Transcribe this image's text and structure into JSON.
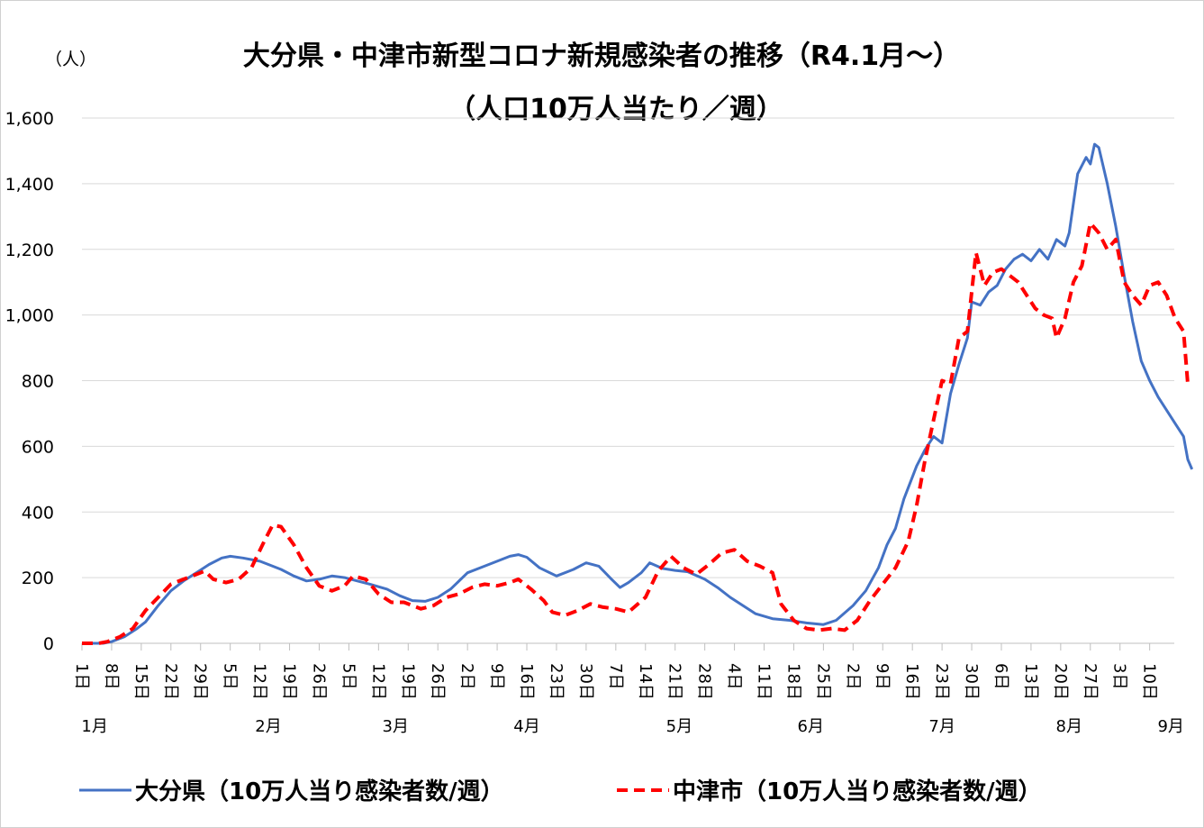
{
  "chart_data": {
    "type": "line",
    "title": "大分県・中津市新型コロナ新規感染者の推移（R4.1月～）",
    "subtitle": "（人口10万人当たり／週）",
    "ylabel": "（人）",
    "ylim": [
      0,
      1600
    ],
    "yticks": [
      0,
      200,
      400,
      600,
      800,
      1000,
      1200,
      1400,
      1600
    ],
    "ytick_labels": [
      "0",
      "200",
      "400",
      "600",
      "800",
      "1,000",
      "1,200",
      "1,400",
      "1,600"
    ],
    "grid": true,
    "legend_position": "bottom",
    "x_range": [
      0,
      253
    ],
    "x_ticks": [
      {
        "i": 0,
        "label": "1日"
      },
      {
        "i": 7,
        "label": "8日"
      },
      {
        "i": 14,
        "label": "15日"
      },
      {
        "i": 21,
        "label": "22日"
      },
      {
        "i": 28,
        "label": "29日"
      },
      {
        "i": 35,
        "label": "5日"
      },
      {
        "i": 42,
        "label": "12日"
      },
      {
        "i": 49,
        "label": "19日"
      },
      {
        "i": 56,
        "label": "26日"
      },
      {
        "i": 63,
        "label": "5日"
      },
      {
        "i": 70,
        "label": "12日"
      },
      {
        "i": 77,
        "label": "19日"
      },
      {
        "i": 84,
        "label": "26日"
      },
      {
        "i": 91,
        "label": "2日"
      },
      {
        "i": 98,
        "label": "9日"
      },
      {
        "i": 105,
        "label": "16日"
      },
      {
        "i": 112,
        "label": "23日"
      },
      {
        "i": 119,
        "label": "30日"
      },
      {
        "i": 126,
        "label": "7日"
      },
      {
        "i": 133,
        "label": "14日"
      },
      {
        "i": 140,
        "label": "21日"
      },
      {
        "i": 147,
        "label": "28日"
      },
      {
        "i": 154,
        "label": "4日"
      },
      {
        "i": 161,
        "label": "11日"
      },
      {
        "i": 168,
        "label": "18日"
      },
      {
        "i": 175,
        "label": "25日"
      },
      {
        "i": 182,
        "label": "2日"
      },
      {
        "i": 189,
        "label": "9日"
      },
      {
        "i": 196,
        "label": "16日"
      },
      {
        "i": 203,
        "label": "23日"
      },
      {
        "i": 210,
        "label": "30日"
      },
      {
        "i": 217,
        "label": "6日"
      },
      {
        "i": 224,
        "label": "13日"
      },
      {
        "i": 231,
        "label": "20日"
      },
      {
        "i": 238,
        "label": "27日"
      },
      {
        "i": 245,
        "label": "3日"
      },
      {
        "i": 252,
        "label": "10日"
      }
    ],
    "months": [
      {
        "i": 3,
        "label": "1月"
      },
      {
        "i": 44,
        "label": "2月"
      },
      {
        "i": 74,
        "label": "3月"
      },
      {
        "i": 105,
        "label": "4月"
      },
      {
        "i": 141,
        "label": "5月"
      },
      {
        "i": 172,
        "label": "6月"
      },
      {
        "i": 203,
        "label": "7月"
      },
      {
        "i": 233,
        "label": "8月"
      },
      {
        "i": 257,
        "label": "9月"
      }
    ],
    "series": [
      {
        "name": "大分県（10万人当り感染者数/週）",
        "color": "#4472C4",
        "style": "solid",
        "points": [
          [
            0,
            0
          ],
          [
            5,
            0
          ],
          [
            7,
            5
          ],
          [
            10,
            20
          ],
          [
            13,
            45
          ],
          [
            15,
            65
          ],
          [
            18,
            115
          ],
          [
            21,
            160
          ],
          [
            24,
            190
          ],
          [
            27,
            215
          ],
          [
            30,
            240
          ],
          [
            33,
            260
          ],
          [
            35,
            265
          ],
          [
            38,
            260
          ],
          [
            42,
            250
          ],
          [
            44,
            240
          ],
          [
            47,
            225
          ],
          [
            50,
            205
          ],
          [
            53,
            190
          ],
          [
            56,
            195
          ],
          [
            59,
            205
          ],
          [
            62,
            200
          ],
          [
            65,
            190
          ],
          [
            68,
            180
          ],
          [
            72,
            165
          ],
          [
            75,
            145
          ],
          [
            78,
            130
          ],
          [
            81,
            128
          ],
          [
            84,
            140
          ],
          [
            87,
            165
          ],
          [
            91,
            215
          ],
          [
            95,
            235
          ],
          [
            98,
            250
          ],
          [
            101,
            265
          ],
          [
            103,
            270
          ],
          [
            105,
            262
          ],
          [
            108,
            230
          ],
          [
            112,
            205
          ],
          [
            116,
            225
          ],
          [
            119,
            245
          ],
          [
            122,
            235
          ],
          [
            125,
            195
          ],
          [
            127,
            170
          ],
          [
            129,
            185
          ],
          [
            132,
            215
          ],
          [
            134,
            245
          ],
          [
            137,
            228
          ],
          [
            140,
            222
          ],
          [
            143,
            218
          ],
          [
            147,
            195
          ],
          [
            150,
            170
          ],
          [
            153,
            140
          ],
          [
            156,
            115
          ],
          [
            159,
            90
          ],
          [
            163,
            75
          ],
          [
            167,
            70
          ],
          [
            171,
            62
          ],
          [
            175,
            57
          ],
          [
            178,
            70
          ],
          [
            182,
            115
          ],
          [
            185,
            160
          ],
          [
            188,
            230
          ],
          [
            190,
            300
          ],
          [
            192,
            350
          ],
          [
            194,
            440
          ],
          [
            197,
            540
          ],
          [
            199,
            590
          ],
          [
            201,
            630
          ],
          [
            203,
            610
          ],
          [
            205,
            760
          ],
          [
            207,
            850
          ],
          [
            209,
            930
          ],
          [
            210,
            1040
          ],
          [
            212,
            1030
          ],
          [
            214,
            1070
          ],
          [
            216,
            1090
          ],
          [
            218,
            1140
          ],
          [
            220,
            1170
          ],
          [
            222,
            1185
          ],
          [
            224,
            1165
          ],
          [
            226,
            1200
          ],
          [
            228,
            1170
          ],
          [
            230,
            1230
          ],
          [
            232,
            1210
          ],
          [
            233,
            1250
          ],
          [
            235,
            1430
          ],
          [
            237,
            1480
          ],
          [
            238,
            1460
          ],
          [
            239,
            1520
          ],
          [
            240,
            1510
          ],
          [
            242,
            1400
          ],
          [
            244,
            1270
          ],
          [
            246,
            1120
          ],
          [
            248,
            980
          ],
          [
            250,
            860
          ],
          [
            252,
            800
          ],
          [
            254,
            750
          ],
          [
            256,
            710
          ],
          [
            258,
            670
          ],
          [
            260,
            630
          ],
          [
            261,
            560
          ],
          [
            262,
            530
          ]
        ]
      },
      {
        "name": "中津市（10万人当り感染者数/週）",
        "color": "#FF0000",
        "style": "dashed",
        "points": [
          [
            0,
            0
          ],
          [
            4,
            0
          ],
          [
            6,
            5
          ],
          [
            9,
            20
          ],
          [
            12,
            45
          ],
          [
            15,
            100
          ],
          [
            18,
            140
          ],
          [
            21,
            180
          ],
          [
            24,
            195
          ],
          [
            27,
            210
          ],
          [
            29,
            220
          ],
          [
            31,
            195
          ],
          [
            34,
            185
          ],
          [
            37,
            195
          ],
          [
            40,
            230
          ],
          [
            43,
            310
          ],
          [
            45,
            360
          ],
          [
            47,
            355
          ],
          [
            50,
            300
          ],
          [
            53,
            230
          ],
          [
            56,
            175
          ],
          [
            59,
            160
          ],
          [
            62,
            175
          ],
          [
            64,
            205
          ],
          [
            67,
            195
          ],
          [
            70,
            150
          ],
          [
            73,
            125
          ],
          [
            76,
            125
          ],
          [
            80,
            105
          ],
          [
            83,
            115
          ],
          [
            86,
            140
          ],
          [
            89,
            150
          ],
          [
            92,
            170
          ],
          [
            95,
            180
          ],
          [
            98,
            175
          ],
          [
            101,
            185
          ],
          [
            103,
            195
          ],
          [
            106,
            165
          ],
          [
            109,
            130
          ],
          [
            111,
            95
          ],
          [
            114,
            85
          ],
          [
            117,
            100
          ],
          [
            120,
            120
          ],
          [
            123,
            110
          ],
          [
            126,
            105
          ],
          [
            129,
            95
          ],
          [
            133,
            140
          ],
          [
            136,
            220
          ],
          [
            139,
            265
          ],
          [
            142,
            230
          ],
          [
            145,
            210
          ],
          [
            148,
            240
          ],
          [
            151,
            275
          ],
          [
            154,
            285
          ],
          [
            157,
            250
          ],
          [
            160,
            235
          ],
          [
            163,
            215
          ],
          [
            165,
            120
          ],
          [
            168,
            70
          ],
          [
            171,
            45
          ],
          [
            174,
            40
          ],
          [
            177,
            45
          ],
          [
            180,
            40
          ],
          [
            183,
            70
          ],
          [
            186,
            130
          ],
          [
            189,
            180
          ],
          [
            192,
            230
          ],
          [
            195,
            310
          ],
          [
            197,
            420
          ],
          [
            199,
            560
          ],
          [
            201,
            680
          ],
          [
            203,
            800
          ],
          [
            205,
            790
          ],
          [
            207,
            930
          ],
          [
            209,
            950
          ],
          [
            211,
            1190
          ],
          [
            213,
            1090
          ],
          [
            215,
            1130
          ],
          [
            217,
            1140
          ],
          [
            219,
            1120
          ],
          [
            221,
            1100
          ],
          [
            223,
            1060
          ],
          [
            225,
            1020
          ],
          [
            227,
            1000
          ],
          [
            229,
            990
          ],
          [
            230,
            930
          ],
          [
            232,
            990
          ],
          [
            234,
            1100
          ],
          [
            236,
            1150
          ],
          [
            238,
            1280
          ],
          [
            240,
            1250
          ],
          [
            242,
            1200
          ],
          [
            244,
            1230
          ],
          [
            246,
            1100
          ],
          [
            248,
            1060
          ],
          [
            250,
            1030
          ],
          [
            252,
            1090
          ],
          [
            254,
            1100
          ],
          [
            256,
            1060
          ],
          [
            258,
            990
          ],
          [
            260,
            950
          ],
          [
            261,
            790
          ]
        ]
      }
    ]
  }
}
